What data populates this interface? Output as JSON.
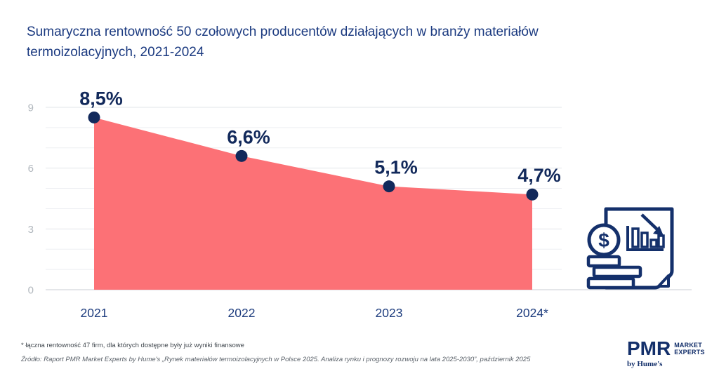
{
  "title": {
    "line1": "Sumaryczna rentowność 50 czołowych producentów działających w branży materiałów",
    "line2": "termoizolacyjnych, 2021-2024"
  },
  "chart_data": {
    "type": "area",
    "categories": [
      "2021",
      "2022",
      "2023",
      "2024*"
    ],
    "values": [
      8.5,
      6.6,
      5.1,
      4.7
    ],
    "point_labels": [
      "8,5%",
      "6,6%",
      "5,1%",
      "4,7%"
    ],
    "ylabel": "",
    "xlabel": "",
    "ylim": [
      0,
      9
    ],
    "ytick_labels": [
      "0",
      "3",
      "6",
      "9"
    ],
    "ytick_values": [
      0,
      3,
      6,
      9
    ],
    "grid": "horizontal, every 1 unit",
    "legend": "none",
    "colors": {
      "area": "#FC7176",
      "point": "#12295B",
      "value_label": "#12295B",
      "year_label": "#1D3C7E",
      "tick_label": "#B2B8BE",
      "gridline_major": "#E2E5E9",
      "gridline_minor": "#EDEFF2",
      "axis_line": "#C9CED3"
    }
  },
  "icon": {
    "name": "declining-finance-report",
    "dollar_sign": "$"
  },
  "footnote": "* łączna rentowność 47 firm, dla których dostępne były już wyniki finansowe",
  "source": "Źródło: Raport PMR Market Experts by Hume's „Rynek materiałów termoizolacyjnych w Polsce 2025. Analiza rynku i prognozy rozwoju na lata 2025-2030”, październik 2025",
  "logo": {
    "pmr": "PMR",
    "market": "MARKET",
    "experts": "EXPERTS",
    "byline": "by Hume's"
  }
}
